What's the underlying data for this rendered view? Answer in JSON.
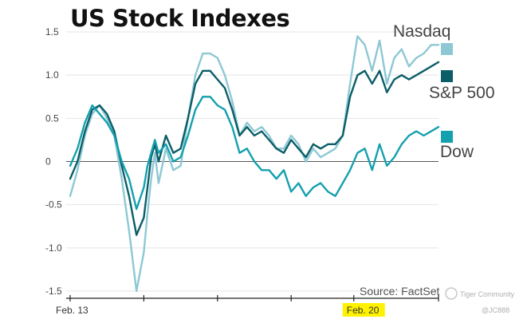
{
  "chart_data": {
    "type": "line",
    "title": "US Stock Indexes",
    "xlabel": "",
    "ylabel": "",
    "ylim": [
      -1.5,
      1.5
    ],
    "yticks": [
      {
        "value": 1.5,
        "label": "1.5"
      },
      {
        "value": 1.0,
        "label": "1.0"
      },
      {
        "value": 0.5,
        "label": "0.5"
      },
      {
        "value": 0,
        "label": "0"
      },
      {
        "value": -0.5,
        "label": "-0.5"
      },
      {
        "value": -1.0,
        "label": "-1.0"
      },
      {
        "value": -1.5,
        "label": "-1.5"
      }
    ],
    "x_range": [
      0,
      100
    ],
    "xticks": [
      {
        "x": 0,
        "label": "Feb. 13",
        "highlight": false
      },
      {
        "x": 77,
        "label": "Feb. 20",
        "highlight": true,
        "highlight_color": "#fff200"
      }
    ],
    "series": [
      {
        "name": "Nasdaq",
        "color": "#8dc8d4",
        "x": [
          0,
          2,
          4,
          6,
          8,
          10,
          12,
          14,
          16,
          18,
          20,
          21,
          22,
          23,
          24,
          26,
          28,
          30,
          32,
          34,
          36,
          38,
          40,
          42,
          44,
          45,
          46,
          48,
          50,
          52,
          54,
          56,
          58,
          60,
          62,
          64,
          66,
          68,
          70,
          72,
          74,
          76,
          78,
          80,
          82,
          84,
          86,
          88,
          90,
          92,
          94,
          96,
          98,
          100
        ],
        "values": [
          -0.4,
          -0.1,
          0.3,
          0.55,
          0.65,
          0.5,
          0.3,
          -0.2,
          -0.8,
          -1.5,
          -1.05,
          -0.6,
          -0.2,
          0.1,
          -0.25,
          0.15,
          -0.1,
          -0.05,
          0.5,
          1.0,
          1.25,
          1.25,
          1.2,
          1.0,
          0.7,
          0.5,
          0.3,
          0.45,
          0.35,
          0.4,
          0.3,
          0.15,
          0.15,
          0.3,
          0.2,
          0.0,
          0.15,
          0.05,
          0.1,
          0.15,
          0.3,
          0.9,
          1.45,
          1.35,
          1.05,
          1.4,
          0.9,
          1.2,
          1.3,
          1.1,
          1.2,
          1.25,
          1.35,
          1.35
        ]
      },
      {
        "name": "S&P 500",
        "color": "#0b5e68",
        "x": [
          0,
          2,
          4,
          6,
          8,
          10,
          12,
          14,
          16,
          18,
          20,
          21,
          22,
          23,
          24,
          26,
          28,
          30,
          32,
          34,
          36,
          38,
          40,
          42,
          44,
          45,
          46,
          48,
          50,
          52,
          54,
          56,
          58,
          60,
          62,
          64,
          66,
          68,
          70,
          72,
          74,
          76,
          78,
          80,
          82,
          84,
          86,
          88,
          90,
          92,
          94,
          96,
          98,
          100
        ],
        "values": [
          -0.2,
          0.0,
          0.35,
          0.6,
          0.65,
          0.55,
          0.35,
          -0.05,
          -0.4,
          -0.85,
          -0.65,
          -0.3,
          0.05,
          0.2,
          0.0,
          0.3,
          0.1,
          0.15,
          0.5,
          0.9,
          1.05,
          1.05,
          0.95,
          0.85,
          0.6,
          0.45,
          0.3,
          0.4,
          0.3,
          0.35,
          0.25,
          0.15,
          0.1,
          0.25,
          0.15,
          0.05,
          0.2,
          0.15,
          0.2,
          0.2,
          0.3,
          0.75,
          1.0,
          1.05,
          0.9,
          1.05,
          0.8,
          0.95,
          1.0,
          0.95,
          1.0,
          1.05,
          1.1,
          1.15
        ]
      },
      {
        "name": "Dow",
        "color": "#14a0ae",
        "x": [
          0,
          2,
          4,
          6,
          8,
          10,
          12,
          14,
          16,
          18,
          20,
          21,
          22,
          23,
          24,
          26,
          28,
          30,
          32,
          34,
          36,
          38,
          40,
          42,
          44,
          45,
          46,
          48,
          50,
          52,
          54,
          56,
          58,
          60,
          62,
          64,
          66,
          68,
          70,
          72,
          74,
          76,
          78,
          80,
          82,
          84,
          86,
          88,
          90,
          92,
          94,
          96,
          98,
          100
        ],
        "values": [
          -0.05,
          0.15,
          0.45,
          0.65,
          0.55,
          0.45,
          0.3,
          0.0,
          -0.2,
          -0.55,
          -0.3,
          -0.05,
          0.1,
          0.25,
          0.1,
          0.2,
          0.0,
          0.05,
          0.3,
          0.6,
          0.75,
          0.75,
          0.65,
          0.6,
          0.4,
          0.25,
          0.1,
          0.15,
          0.0,
          -0.1,
          -0.1,
          -0.2,
          -0.1,
          -0.35,
          -0.25,
          -0.4,
          -0.3,
          -0.25,
          -0.35,
          -0.4,
          -0.25,
          -0.1,
          0.1,
          0.15,
          -0.1,
          0.2,
          -0.05,
          0.05,
          0.2,
          0.3,
          0.35,
          0.3,
          0.35,
          0.4
        ]
      }
    ],
    "legend": {
      "placement": "right"
    },
    "annotations": {
      "source": "Source: FactSet"
    }
  },
  "watermark": {
    "name": "Tiger Community",
    "handle": "@JC888"
  }
}
